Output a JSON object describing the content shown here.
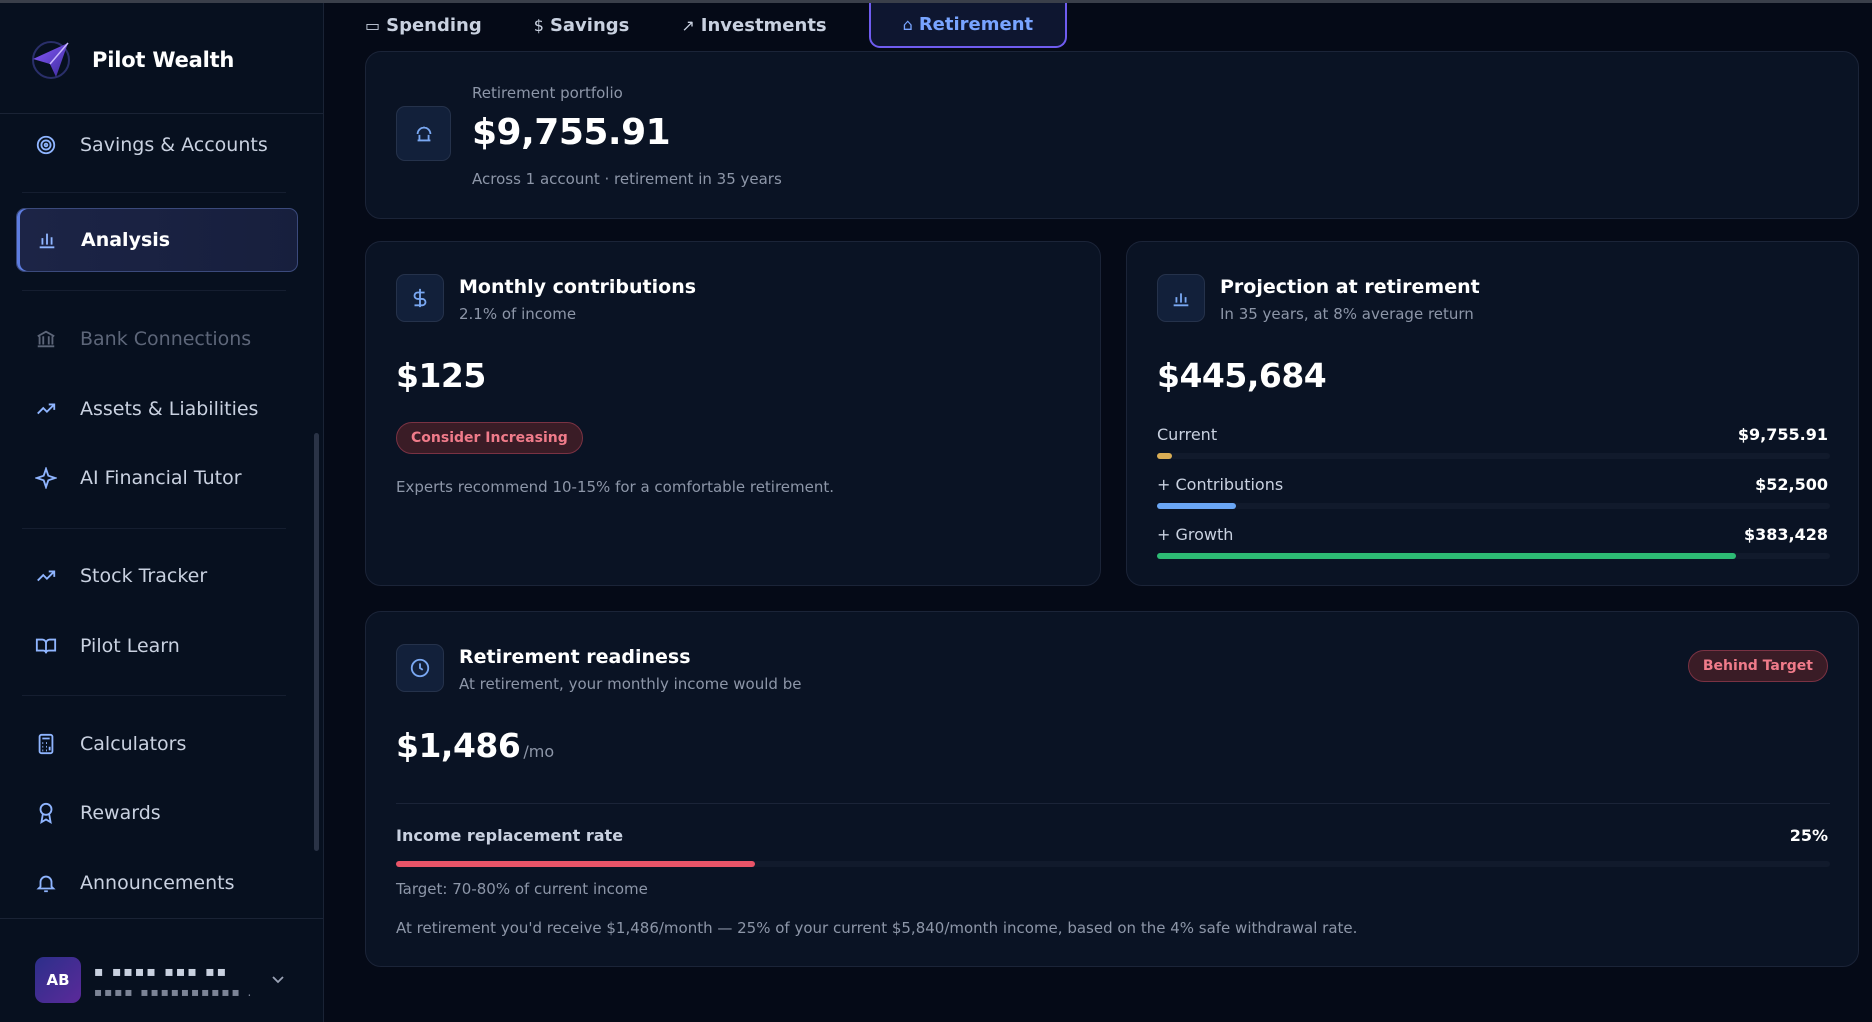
{
  "brand": {
    "name": "Pilot Wealth"
  },
  "sidebar": {
    "items": [
      {
        "label": "Savings & Accounts",
        "icon": "target-icon"
      },
      {
        "label": "Analysis",
        "icon": "bar-chart-icon",
        "active": true
      },
      {
        "label": "Bank Connections",
        "icon": "bank-icon",
        "disabled": true
      },
      {
        "label": "Assets & Liabilities",
        "icon": "trend-up-icon"
      },
      {
        "label": "AI Financial Tutor",
        "icon": "sparkle-icon"
      },
      {
        "label": "Stock Tracker",
        "icon": "trend-up-icon"
      },
      {
        "label": "Pilot Learn",
        "icon": "book-icon"
      },
      {
        "label": "Calculators",
        "icon": "calculator-icon"
      },
      {
        "label": "Rewards",
        "icon": "award-icon"
      },
      {
        "label": "Announcements",
        "icon": "bell-icon"
      }
    ]
  },
  "user": {
    "initials": "AB",
    "name": "▪ ▪▪▪▪ ▪▪▪ ▪▪",
    "email": "▪▪▪▪ ▪▪▪▪▪▪▪▪▪▪ ."
  },
  "tabs": [
    {
      "label": "Spending",
      "icon": "card-icon"
    },
    {
      "label": "Savings",
      "icon": "dollar-icon"
    },
    {
      "label": "Investments",
      "icon": "trend-up-icon"
    },
    {
      "label": "Retirement",
      "icon": "umbrella-icon",
      "active": true
    }
  ],
  "portfolio": {
    "label": "Retirement portfolio",
    "value": "$9,755.91",
    "sub": "Across 1 account · retirement in 35 years"
  },
  "contributions": {
    "title": "Monthly contributions",
    "sub": "2.1% of income",
    "value": "$125",
    "badge": "Consider Increasing",
    "note": "Experts recommend 10-15% for a comfortable retirement."
  },
  "projection": {
    "title": "Projection at retirement",
    "sub": "In 35 years, at 8% average return",
    "value": "$445,684",
    "rows": [
      {
        "label": "Current",
        "value": "$9,755.91",
        "fraction": 0.022,
        "color": "#d9ad55"
      },
      {
        "label": "+ Contributions",
        "value": "$52,500",
        "fraction": 0.118,
        "color": "#6aa6f5"
      },
      {
        "label": "+ Growth",
        "value": "$383,428",
        "fraction": 0.86,
        "color": "#2dbb74"
      }
    ]
  },
  "readiness": {
    "title": "Retirement readiness",
    "sub": "At retirement, your monthly income would be",
    "badge": "Behind Target",
    "value": "$1,486",
    "unit": "/mo",
    "rate_label": "Income replacement rate",
    "rate_value": "25%",
    "rate_fraction": 0.25,
    "rate_color": "#e95468",
    "target": "Target: 70-80% of current income",
    "note": "At retirement you'd receive $1,486/month — 25% of your current $5,840/month income, based on the 4% safe withdrawal rate."
  },
  "colors": {
    "accent": "#78a4ff",
    "tab_border": "#6f5cf0",
    "danger": "#f07b8a"
  }
}
